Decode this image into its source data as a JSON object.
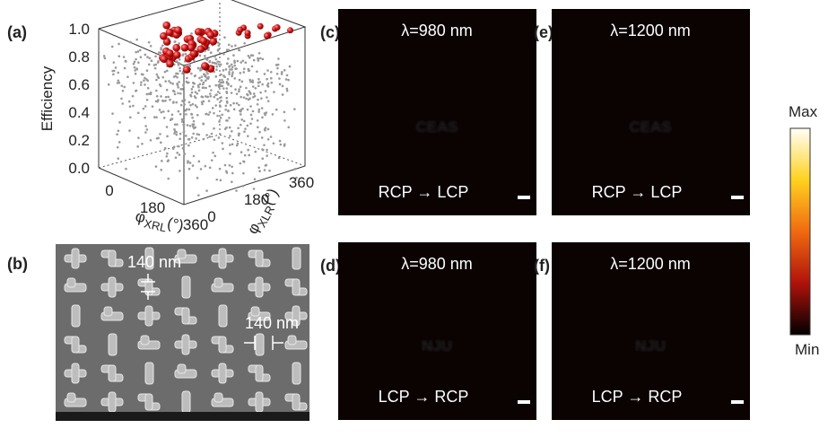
{
  "panels": {
    "a": {
      "label": "(a)",
      "y_title": "Efficiency",
      "y_ticks": [
        "0.0",
        "0.2",
        "0.4",
        "0.6",
        "0.8",
        "1.0"
      ],
      "x1_symbol": "φ",
      "x1_sub": "XRL",
      "x1_unit": "(°)",
      "x1_ticks": [
        "0",
        "180",
        "360"
      ],
      "x2_symbol": "φ",
      "x2_sub": "XLR",
      "x2_unit": "(°)",
      "x2_ticks": [
        "0",
        "180",
        "360"
      ]
    },
    "b": {
      "label": "(b)",
      "gap_labels": [
        "140 nm",
        "140 nm"
      ]
    },
    "c": {
      "label": "(c)",
      "wavelength": "λ=980 nm",
      "image_text": "CEAS",
      "conversion": "RCP → LCP"
    },
    "d": {
      "label": "(d)",
      "wavelength": "λ=980 nm",
      "image_text": "NJU",
      "conversion": "LCP → RCP"
    },
    "e": {
      "label": "(e)",
      "wavelength": "λ=1200 nm",
      "image_text": "CEAS",
      "conversion": "RCP → LCP"
    },
    "f": {
      "label": "(f)",
      "wavelength": "λ=1200 nm",
      "image_text": "NJU",
      "conversion": "LCP → RCP"
    }
  },
  "colorbar": {
    "max": "Max",
    "min": "Min"
  }
}
